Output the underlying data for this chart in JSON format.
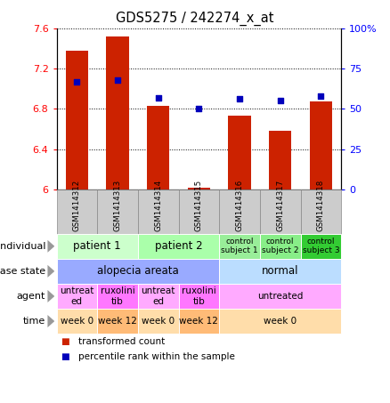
{
  "title": "GDS5275 / 242274_x_at",
  "samples": [
    "GSM1414312",
    "GSM1414313",
    "GSM1414314",
    "GSM1414315",
    "GSM1414316",
    "GSM1414317",
    "GSM1414318"
  ],
  "transformed_count": [
    7.38,
    7.52,
    6.83,
    6.02,
    6.73,
    6.58,
    6.87
  ],
  "percentile_rank": [
    67,
    68,
    57,
    50,
    56,
    55,
    58
  ],
  "ylim_left": [
    6.0,
    7.6
  ],
  "yticks_left": [
    6.0,
    6.4,
    6.8,
    7.2,
    7.6
  ],
  "ytick_labels_left": [
    "6",
    "6.4",
    "6.8",
    "7.2",
    "7.6"
  ],
  "ylim_right": [
    0,
    100
  ],
  "yticks_right": [
    0,
    25,
    50,
    75,
    100
  ],
  "ytick_labels_right": [
    "0",
    "25",
    "50",
    "75",
    "100%"
  ],
  "bar_color": "#cc2200",
  "dot_color": "#0000bb",
  "annotation_rows": [
    {
      "label": "individual",
      "cells": [
        {
          "text": "patient 1",
          "span": [
            0,
            2
          ],
          "color": "#ccffcc",
          "fontsize": 8.5
        },
        {
          "text": "patient 2",
          "span": [
            2,
            4
          ],
          "color": "#aaffaa",
          "fontsize": 8.5
        },
        {
          "text": "control\nsubject 1",
          "span": [
            4,
            5
          ],
          "color": "#99ee99",
          "fontsize": 6.5
        },
        {
          "text": "control\nsubject 2",
          "span": [
            5,
            6
          ],
          "color": "#88ee88",
          "fontsize": 6.5
        },
        {
          "text": "control\nsubject 3",
          "span": [
            6,
            7
          ],
          "color": "#33cc33",
          "fontsize": 6.5
        }
      ]
    },
    {
      "label": "disease state",
      "cells": [
        {
          "text": "alopecia areata",
          "span": [
            0,
            4
          ],
          "color": "#99aaff",
          "fontsize": 8.5
        },
        {
          "text": "normal",
          "span": [
            4,
            7
          ],
          "color": "#bbddff",
          "fontsize": 8.5
        }
      ]
    },
    {
      "label": "agent",
      "cells": [
        {
          "text": "untreat\ned",
          "span": [
            0,
            1
          ],
          "color": "#ffaaff",
          "fontsize": 7.5
        },
        {
          "text": "ruxolini\ntib",
          "span": [
            1,
            2
          ],
          "color": "#ff77ff",
          "fontsize": 7.5
        },
        {
          "text": "untreat\ned",
          "span": [
            2,
            3
          ],
          "color": "#ffaaff",
          "fontsize": 7.5
        },
        {
          "text": "ruxolini\ntib",
          "span": [
            3,
            4
          ],
          "color": "#ff77ff",
          "fontsize": 7.5
        },
        {
          "text": "untreated",
          "span": [
            4,
            7
          ],
          "color": "#ffaaff",
          "fontsize": 7.5
        }
      ]
    },
    {
      "label": "time",
      "cells": [
        {
          "text": "week 0",
          "span": [
            0,
            1
          ],
          "color": "#ffddaa",
          "fontsize": 7.5
        },
        {
          "text": "week 12",
          "span": [
            1,
            2
          ],
          "color": "#ffbb77",
          "fontsize": 7.5
        },
        {
          "text": "week 0",
          "span": [
            2,
            3
          ],
          "color": "#ffddaa",
          "fontsize": 7.5
        },
        {
          "text": "week 12",
          "span": [
            3,
            4
          ],
          "color": "#ffbb77",
          "fontsize": 7.5
        },
        {
          "text": "week 0",
          "span": [
            4,
            7
          ],
          "color": "#ffddaa",
          "fontsize": 7.5
        }
      ]
    }
  ],
  "legend_items": [
    {
      "color": "#cc2200",
      "label": "transformed count"
    },
    {
      "color": "#0000bb",
      "label": "percentile rank within the sample"
    }
  ],
  "sample_box_color": "#cccccc",
  "sample_box_edge": "#888888"
}
